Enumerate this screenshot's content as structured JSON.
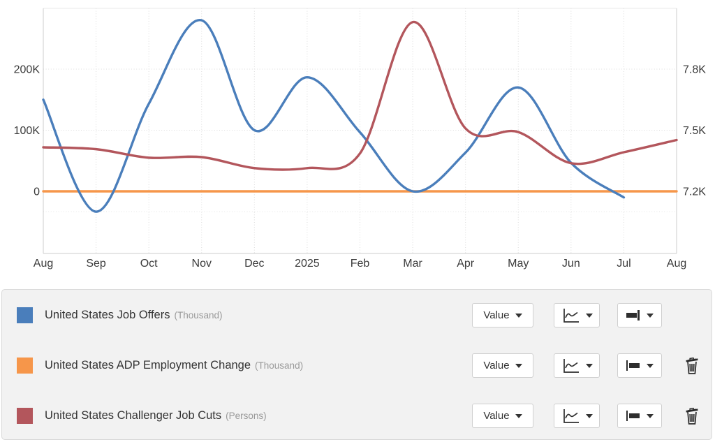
{
  "chart_data": {
    "type": "line",
    "title": "",
    "x_labels": [
      "Aug",
      "Sep",
      "Oct",
      "Nov",
      "Dec",
      "2025",
      "Feb",
      "Mar",
      "Apr",
      "May",
      "Jun",
      "Jul",
      "Aug"
    ],
    "left_axis": {
      "ticks": [
        {
          "label": "200K",
          "value": 200000
        },
        {
          "label": "100K",
          "value": 100000
        },
        {
          "label": "0",
          "value": 0
        }
      ]
    },
    "right_axis": {
      "ticks": [
        {
          "label": "7.8K",
          "value": 7.8
        },
        {
          "label": "7.5K",
          "value": 7.5
        },
        {
          "label": "7.2K",
          "value": 7.2
        }
      ],
      "extra_gridline_value": 7.1
    },
    "grid": true,
    "legend_position": "bottom-panel",
    "series": [
      {
        "name": "United States Job Offers",
        "unit": "Thousand",
        "axis": "right",
        "color": "#4A7EBB",
        "values": [
          7.65,
          7.1,
          7.63,
          8.04,
          7.5,
          7.76,
          7.49,
          7.2,
          7.39,
          7.71,
          7.34,
          7.17,
          null
        ]
      },
      {
        "name": "United States ADP Employment Change",
        "unit": "Thousand",
        "axis": "left",
        "color": "#F6964A",
        "values": [
          0,
          0,
          0,
          0,
          0,
          0,
          0,
          0,
          0,
          0,
          0,
          0,
          0
        ]
      },
      {
        "name": "United States Challenger Job Cuts",
        "unit": "Persons",
        "axis": "left",
        "color": "#B3565C",
        "values": [
          72000,
          69000,
          55000,
          56000,
          38000,
          38000,
          62000,
          277000,
          103000,
          97000,
          46000,
          64000,
          84000
        ]
      }
    ]
  },
  "legend": {
    "rows": [
      {
        "label": "United States Job Offers",
        "unit": "(Thousand)",
        "color": "#4A7EBB",
        "value_button": "Value",
        "can_delete": false
      },
      {
        "label": "United States ADP Employment Change",
        "unit": "(Thousand)",
        "color": "#F6964A",
        "value_button": "Value",
        "can_delete": true
      },
      {
        "label": "United States Challenger Job Cuts",
        "unit": "(Persons)",
        "color": "#B3565C",
        "value_button": "Value",
        "can_delete": true
      }
    ]
  },
  "colors": {
    "grid": "#dcdcdc",
    "grid_faint": "#e4e4e4",
    "axis": "#cdcdcd",
    "top_border": "#e8e8e8",
    "text": "#3a3a3a",
    "muted": "#999999",
    "panel_bg": "#f2f2f2",
    "panel_border": "#d9d9d9"
  }
}
